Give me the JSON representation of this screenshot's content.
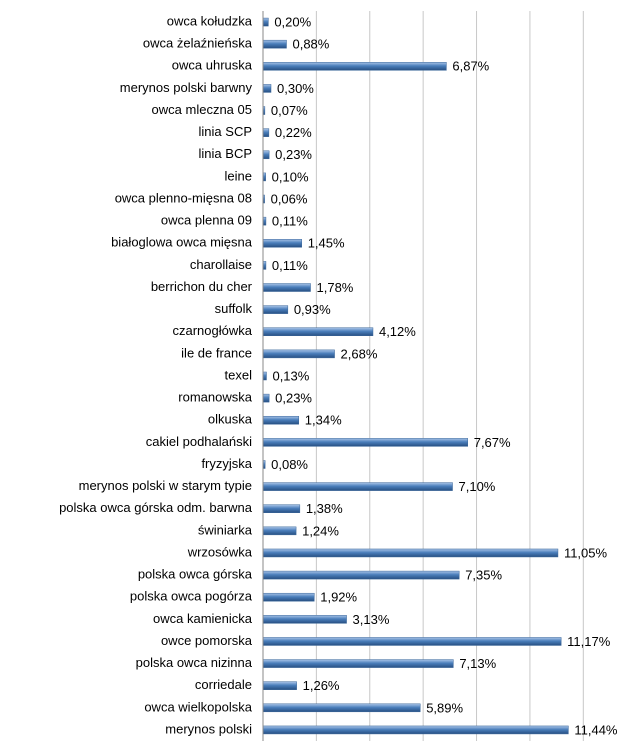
{
  "chart_data": {
    "type": "bar",
    "orientation": "horizontal",
    "categories": [
      "owca kołudzka",
      "owca żelaźnieńska",
      "owca uhruska",
      "merynos polski barwny",
      "owca mleczna 05",
      "linia SCP",
      "linia BCP",
      "leine",
      "owca plenno-mięsna 08",
      "owca plenna 09",
      "białoglowa owca mięsna",
      "charollaise",
      "berrichon du cher",
      "suffolk",
      "czarnogłówka",
      "ile de france",
      "texel",
      "romanowska",
      "olkuska",
      "cakiel podhalański",
      "fryzyjska",
      "merynos polski w starym typie",
      "polska owca górska odm. barwna",
      "świniarka",
      "wrzosówka",
      "polska owca górska",
      "polska owca pogórza",
      "owca kamienicka",
      "owce pomorska",
      "polska owca nizinna",
      "corriedale",
      "owca wielkopolska",
      "merynos polski"
    ],
    "values": [
      0.2,
      0.88,
      6.87,
      0.3,
      0.07,
      0.22,
      0.23,
      0.1,
      0.06,
      0.11,
      1.45,
      0.11,
      1.78,
      0.93,
      4.12,
      2.68,
      0.13,
      0.23,
      1.34,
      7.67,
      0.08,
      7.1,
      1.38,
      1.24,
      11.05,
      7.35,
      1.92,
      3.13,
      11.17,
      7.13,
      1.26,
      5.89,
      11.44
    ],
    "value_labels": [
      "0,20%",
      "0,88%",
      "6,87%",
      "0,30%",
      "0,07%",
      "0,22%",
      "0,23%",
      "0,10%",
      "0,06%",
      "0,11%",
      "1,45%",
      "0,11%",
      "1,78%",
      "0,93%",
      "4,12%",
      "2,68%",
      "0,13%",
      "0,23%",
      "1,34%",
      "7,67%",
      "0,08%",
      "7,10%",
      "1,38%",
      "1,24%",
      "11,05%",
      "7,35%",
      "1,92%",
      "3,13%",
      "11,17%",
      "7,13%",
      "1,26%",
      "5,89%",
      "11,44%"
    ],
    "color": "#4a7ebb",
    "xlim": [
      0,
      13
    ],
    "xticks": [
      0,
      2,
      4,
      6,
      8,
      10,
      12
    ],
    "grid": true
  }
}
